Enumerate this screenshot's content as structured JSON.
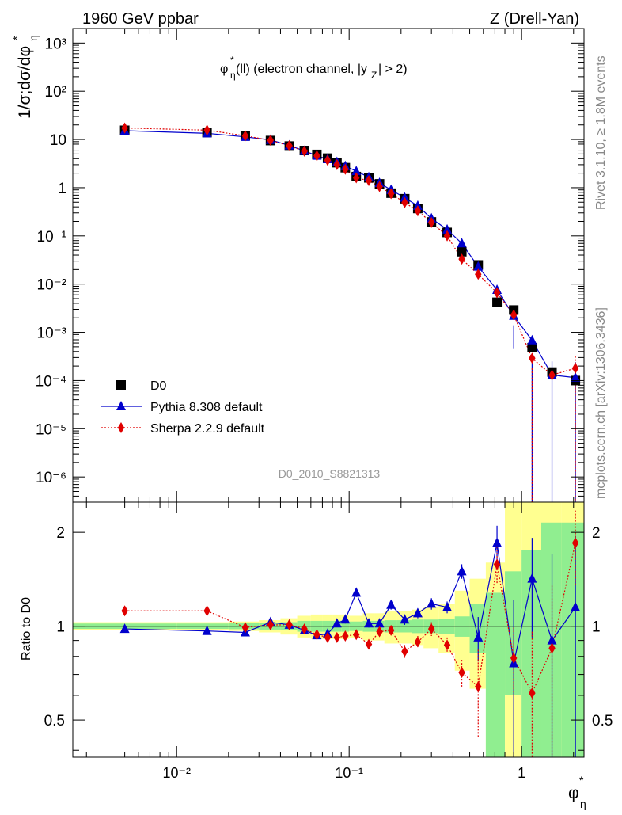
{
  "header": {
    "left": "1960 GeV ppbar",
    "right": "Z (Drell-Yan)"
  },
  "side_labels": {
    "top": "Rivet 3.1.10, ≥ 1.8M events",
    "bottom": "mcplots.cern.ch [arXiv:1306.3436]"
  },
  "chart_data": [
    {
      "type": "scatter",
      "title": "φ*η(ll) (electron channel, |yZ| > 2)",
      "ylabel": "1/σ;dσ/dφ*η",
      "xscale": "log",
      "yscale": "log",
      "xlim": [
        0.0025,
        2.3
      ],
      "ylim": [
        3e-07,
        2000
      ],
      "ytick_labels": [
        "10⁻⁶",
        "10⁻⁵",
        "10⁻⁴",
        "10⁻³",
        "10⁻²",
        "10⁻¹",
        "1",
        "10",
        "10²",
        "10³"
      ],
      "legend_position": "lower-left",
      "watermark": "D0_2010_S8821313",
      "x": [
        0.005,
        0.015,
        0.025,
        0.035,
        0.045,
        0.055,
        0.065,
        0.075,
        0.085,
        0.095,
        0.11,
        0.13,
        0.15,
        0.175,
        0.21,
        0.25,
        0.3,
        0.37,
        0.45,
        0.56,
        0.72,
        0.9,
        1.15,
        1.5,
        2.05
      ],
      "series": [
        {
          "name": "D0",
          "marker": "square",
          "color": "#000000",
          "values": [
            15.5,
            13.9,
            12.0,
            9.5,
            7.3,
            5.9,
            4.9,
            4.1,
            3.3,
            2.6,
            1.7,
            1.6,
            1.2,
            0.77,
            0.59,
            0.37,
            0.195,
            0.118,
            0.047,
            0.025,
            0.0042,
            0.0029,
            0.00048,
            0.00015,
            0.0001
          ]
        },
        {
          "name": "Pythia 8.308 default",
          "marker": "triangle",
          "line": "solid",
          "color": "#0000cc",
          "values": [
            15.2,
            13.4,
            11.3,
            9.8,
            7.5,
            5.8,
            4.6,
            3.9,
            3.4,
            2.8,
            2.2,
            1.65,
            1.25,
            0.9,
            0.62,
            0.42,
            0.23,
            0.135,
            0.07,
            0.023,
            0.0076,
            0.0022,
            0.00068,
            0.00013,
            0.000115
          ]
        },
        {
          "name": "Sherpa 2.2.9 default",
          "marker": "diamond",
          "line": "dotted",
          "color": "#e00000",
          "values": [
            17.3,
            15.6,
            11.9,
            9.6,
            7.4,
            5.7,
            4.6,
            3.7,
            3.0,
            2.4,
            1.6,
            1.4,
            1.05,
            0.75,
            0.49,
            0.33,
            0.19,
            0.1,
            0.033,
            0.016,
            0.0066,
            0.0023,
            0.00029,
            0.00013,
            0.00018
          ]
        }
      ]
    },
    {
      "type": "scatter",
      "ylabel": "Ratio to D0",
      "xlabel": "φ*η",
      "xscale": "log",
      "yscale": "log",
      "xlim": [
        0.0025,
        2.3
      ],
      "ylim": [
        0.38,
        2.5
      ],
      "xtick_labels": [
        "10⁻²",
        "10⁻¹",
        "1"
      ],
      "ytick_labels": [
        "0.5",
        "1",
        "2"
      ],
      "reference_line": 1.0,
      "uncertainty_bands": {
        "colors": [
          "#90ee90",
          "#ffff90"
        ],
        "x_edges": [
          0.0025,
          0.01,
          0.02,
          0.03,
          0.04,
          0.05,
          0.06,
          0.07,
          0.08,
          0.09,
          0.1,
          0.12,
          0.14,
          0.16,
          0.19,
          0.23,
          0.27,
          0.33,
          0.41,
          0.5,
          0.62,
          0.8,
          1.0,
          1.3,
          1.7,
          2.3
        ],
        "green": [
          [
            0.98,
            1.02
          ],
          [
            0.98,
            1.02
          ],
          [
            0.978,
            1.022
          ],
          [
            0.975,
            1.025
          ],
          [
            0.97,
            1.03
          ],
          [
            0.96,
            1.04
          ],
          [
            0.96,
            1.04
          ],
          [
            0.96,
            1.04
          ],
          [
            0.96,
            1.04
          ],
          [
            0.96,
            1.04
          ],
          [
            0.965,
            1.035
          ],
          [
            0.96,
            1.04
          ],
          [
            0.96,
            1.04
          ],
          [
            0.955,
            1.045
          ],
          [
            0.955,
            1.045
          ],
          [
            0.95,
            1.05
          ],
          [
            0.95,
            1.05
          ],
          [
            0.945,
            1.055
          ],
          [
            0.925,
            1.075
          ],
          [
            0.82,
            1.18
          ],
          [
            0.38,
            1.28
          ],
          [
            0.6,
            1.5
          ],
          [
            0.38,
            1.75
          ],
          [
            0.38,
            2.15
          ],
          [
            0.38,
            2.15
          ]
        ],
        "yellow": [
          [
            0.97,
            1.03
          ],
          [
            0.97,
            1.03
          ],
          [
            0.965,
            1.035
          ],
          [
            0.955,
            1.045
          ],
          [
            0.94,
            1.06
          ],
          [
            0.92,
            1.08
          ],
          [
            0.91,
            1.09
          ],
          [
            0.91,
            1.09
          ],
          [
            0.91,
            1.09
          ],
          [
            0.91,
            1.09
          ],
          [
            0.92,
            1.08
          ],
          [
            0.9,
            1.1
          ],
          [
            0.9,
            1.1
          ],
          [
            0.88,
            1.12
          ],
          [
            0.88,
            1.12
          ],
          [
            0.87,
            1.13
          ],
          [
            0.85,
            1.15
          ],
          [
            0.82,
            1.18
          ],
          [
            0.72,
            1.3
          ],
          [
            0.63,
            1.42
          ],
          [
            0.38,
            1.6
          ],
          [
            0.38,
            2.5
          ],
          [
            0.38,
            2.5
          ],
          [
            0.38,
            2.5
          ],
          [
            0.38,
            2.5
          ]
        ]
      },
      "series": [
        {
          "name": "Pythia 8.308 default",
          "color": "#0000cc",
          "values": [
            0.98,
            0.965,
            0.955,
            1.03,
            1.01,
            0.97,
            0.935,
            0.945,
            1.02,
            1.05,
            1.28,
            1.02,
            1.02,
            1.17,
            1.05,
            1.1,
            1.18,
            1.15,
            1.5,
            0.92,
            1.85,
            0.76,
            1.42,
            0.9,
            1.15
          ]
        },
        {
          "name": "Sherpa 2.2.9 default",
          "color": "#e00000",
          "values": [
            1.12,
            1.12,
            0.99,
            1.01,
            1.01,
            0.98,
            0.94,
            0.92,
            0.92,
            0.93,
            0.94,
            0.875,
            0.96,
            0.97,
            0.83,
            0.89,
            0.98,
            0.87,
            0.71,
            0.64,
            1.58,
            0.79,
            0.61,
            0.85,
            1.85
          ]
        }
      ]
    }
  ]
}
